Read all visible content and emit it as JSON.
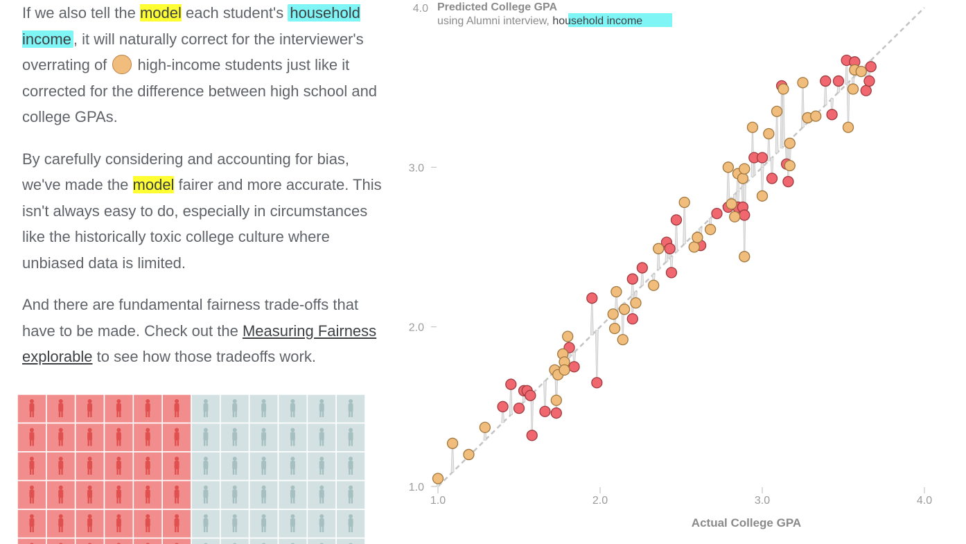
{
  "article": {
    "p1": {
      "pre": "If we also tell the ",
      "model": "model",
      "mid1": " each student's",
      "income": "household income",
      "mid2": ", it will naturally correct for the interviewer's overrating of ",
      "post": " high-income students just like it corrected for the difference between high school and college GPAs."
    },
    "p2": {
      "pre": "By carefully considering and accounting for bias, we've made the ",
      "model": "model",
      "post": " fairer and more accurate. This isn't always easy to do, especially in circumstances like the historically toxic college culture where unbiased data is limited."
    },
    "p3": {
      "pre": "And there are fundamental fairness trade-offs that have to be made. Check out the ",
      "link": "Measuring Fairness explorable",
      "post": " to see how those tradeoffs work."
    }
  },
  "people_grid": {
    "cols": 12,
    "rows": 6,
    "high_income_cols": 6,
    "colors": {
      "high": "#f28d8d",
      "low": "#d3e1e2",
      "high_fig": "#e0504e",
      "low_fig": "#a6c0c2"
    }
  },
  "colors": {
    "high_income": "#f0676f",
    "low_income": "#f1bd7c",
    "model_highlight": "#ffff33",
    "income_highlight": "#80f5f5"
  },
  "chart_data": {
    "type": "scatter",
    "title": "Predicted College GPA",
    "subtitle_pre": "using Alumni interview, ",
    "subtitle_highlight": "household income",
    "xlabel": "Actual College GPA",
    "xlim": [
      1.0,
      4.0
    ],
    "ylim": [
      1.0,
      4.0
    ],
    "xticks": [
      "1.0",
      "2.0",
      "3.0",
      "4.0"
    ],
    "yticks": [
      "1.0",
      "2.0",
      "3.0",
      "4.0"
    ],
    "reference_line": "y = x",
    "series": [
      {
        "group": "high",
        "points": [
          [
            1.45,
            1.64
          ],
          [
            1.4,
            1.5
          ],
          [
            1.5,
            1.49
          ],
          [
            1.53,
            1.6
          ],
          [
            1.55,
            1.6
          ],
          [
            1.57,
            1.57
          ],
          [
            1.58,
            1.32
          ],
          [
            1.66,
            1.47
          ],
          [
            1.73,
            1.46
          ],
          [
            1.81,
            1.87
          ],
          [
            1.84,
            1.75
          ],
          [
            1.95,
            2.18
          ],
          [
            1.98,
            1.65
          ],
          [
            2.2,
            2.05
          ],
          [
            2.2,
            2.3
          ],
          [
            2.26,
            2.37
          ],
          [
            2.41,
            2.53
          ],
          [
            2.43,
            2.49
          ],
          [
            2.44,
            2.34
          ],
          [
            2.47,
            2.67
          ],
          [
            2.62,
            2.51
          ],
          [
            2.72,
            2.71
          ],
          [
            2.79,
            2.75
          ],
          [
            2.85,
            2.75
          ],
          [
            2.88,
            2.75
          ],
          [
            2.89,
            2.7
          ],
          [
            2.95,
            3.06
          ],
          [
            3.0,
            3.06
          ],
          [
            3.06,
            2.93
          ],
          [
            3.12,
            3.51
          ],
          [
            3.15,
            3.02
          ],
          [
            3.16,
            2.91
          ],
          [
            3.39,
            3.54
          ],
          [
            3.43,
            3.33
          ],
          [
            3.52,
            3.67
          ],
          [
            3.57,
            3.66
          ],
          [
            3.64,
            3.48
          ],
          [
            3.66,
            3.54
          ],
          [
            3.67,
            3.63
          ],
          [
            3.47,
            3.54
          ]
        ]
      },
      {
        "group": "low",
        "points": [
          [
            1.0,
            1.05
          ],
          [
            1.09,
            1.27
          ],
          [
            1.19,
            1.2
          ],
          [
            1.29,
            1.37
          ],
          [
            1.72,
            1.73
          ],
          [
            1.73,
            1.54
          ],
          [
            1.74,
            1.7
          ],
          [
            1.77,
            1.83
          ],
          [
            1.78,
            1.78
          ],
          [
            1.78,
            1.73
          ],
          [
            1.8,
            1.94
          ],
          [
            2.08,
            2.08
          ],
          [
            2.09,
            1.99
          ],
          [
            2.1,
            2.22
          ],
          [
            2.14,
            1.92
          ],
          [
            2.15,
            2.11
          ],
          [
            2.22,
            2.15
          ],
          [
            2.33,
            2.26
          ],
          [
            2.36,
            2.49
          ],
          [
            2.52,
            2.78
          ],
          [
            2.58,
            2.5
          ],
          [
            2.6,
            2.56
          ],
          [
            2.68,
            2.61
          ],
          [
            2.79,
            3.0
          ],
          [
            2.81,
            2.77
          ],
          [
            2.83,
            2.69
          ],
          [
            2.85,
            2.96
          ],
          [
            2.88,
            2.93
          ],
          [
            2.89,
            2.99
          ],
          [
            2.89,
            2.44
          ],
          [
            2.94,
            3.25
          ],
          [
            3.0,
            2.82
          ],
          [
            3.04,
            3.21
          ],
          [
            3.09,
            3.35
          ],
          [
            3.13,
            3.49
          ],
          [
            3.17,
            3.01
          ],
          [
            3.17,
            3.15
          ],
          [
            3.25,
            3.53
          ],
          [
            3.28,
            3.31
          ],
          [
            3.33,
            3.32
          ],
          [
            3.53,
            3.25
          ],
          [
            3.56,
            3.49
          ],
          [
            3.57,
            3.61
          ],
          [
            3.61,
            3.6
          ]
        ]
      }
    ]
  }
}
